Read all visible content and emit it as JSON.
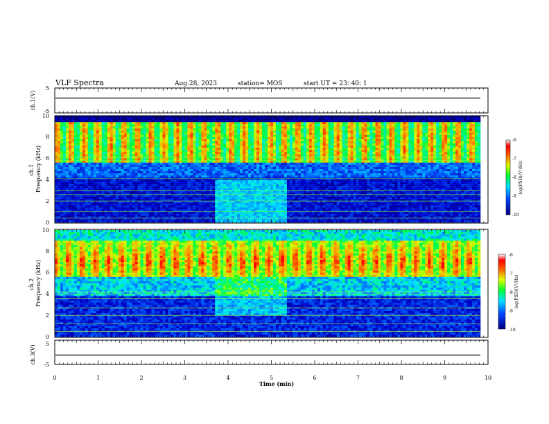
{
  "header": {
    "title": "VLF Spectra",
    "date": "Aug.28, 2023",
    "station": "station= MOS",
    "start": "start  UT  =   23: 40: 1"
  },
  "chart_data": [
    {
      "type": "line",
      "panel": "ch1-waveform",
      "ylabel": "ch.1(V)",
      "ylim": [
        -5,
        5
      ],
      "yticks": [
        "5",
        "-5"
      ],
      "xlim": [
        0,
        10
      ],
      "series": [
        {
          "x": [
            0,
            10
          ],
          "y": [
            0,
            0
          ]
        }
      ]
    },
    {
      "type": "heatmap",
      "panel": "ch1-spectrogram",
      "ylabel": "ch.1\nFrequency (kHz)",
      "ylim": [
        0,
        10
      ],
      "yticks": [
        "0",
        "2",
        "4",
        "6",
        "8",
        "10"
      ],
      "xlim": [
        0,
        10
      ],
      "colorbar": {
        "label": "log(PSD)(V²/Hz)",
        "range": [
          -10,
          -6
        ],
        "ticks": [
          "-6",
          "-7",
          "-8",
          "-9",
          "-10"
        ]
      }
    },
    {
      "type": "heatmap",
      "panel": "ch2-spectrogram",
      "ylabel": "ch.2\nFrequency (kHz)",
      "ylim": [
        0,
        10
      ],
      "yticks": [
        "0",
        "2",
        "4",
        "6",
        "8",
        "10"
      ],
      "xlim": [
        0,
        10
      ],
      "colorbar": {
        "label": "log(PSD)(V²/Hz)",
        "range": [
          -10,
          -6
        ],
        "ticks": [
          "-6",
          "-7",
          "-8",
          "-9",
          "-10"
        ]
      }
    },
    {
      "type": "line",
      "panel": "ch3-waveform",
      "ylabel": "ch.3(V)",
      "ylim": [
        -5,
        5
      ],
      "yticks": [
        "5",
        "-5"
      ],
      "xlim": [
        0,
        10
      ],
      "series": [
        {
          "x": [
            0,
            10
          ],
          "y": [
            0,
            0
          ]
        }
      ]
    }
  ],
  "xaxis": {
    "label": "Time  (min)",
    "ticks": [
      "0",
      "1",
      "2",
      "3",
      "4",
      "5",
      "6",
      "7",
      "8",
      "9",
      "10"
    ]
  },
  "colors": {
    "spectrogram_scale": [
      "#000030",
      "#0000c8",
      "#0064ff",
      "#00e0ff",
      "#00ff40",
      "#c8ff00",
      "#ffa000",
      "#ff0000",
      "#ffffff"
    ]
  }
}
